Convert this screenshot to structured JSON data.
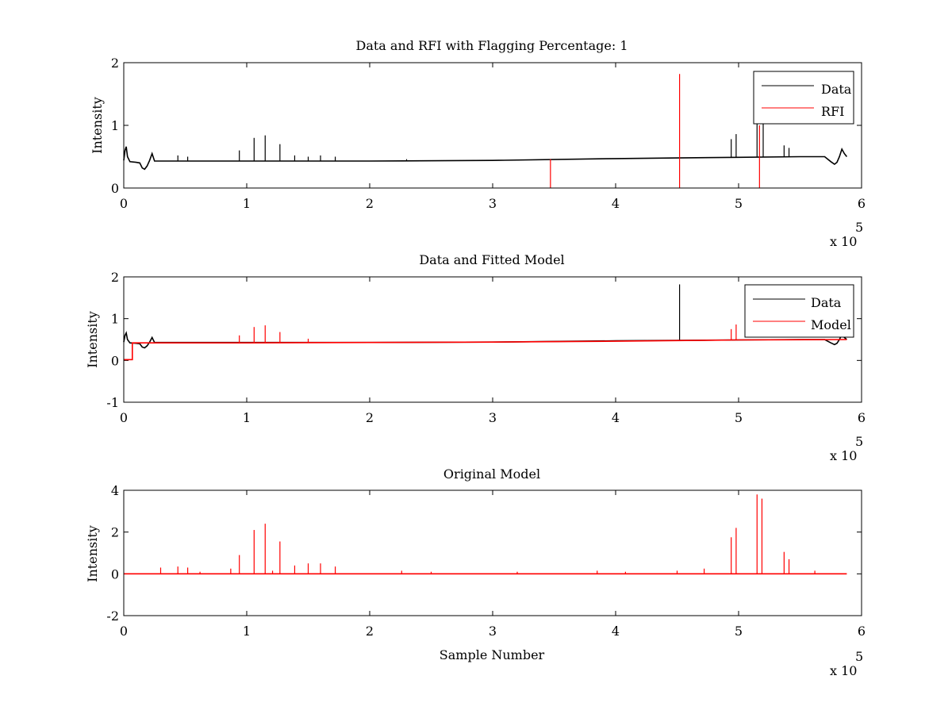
{
  "colors": {
    "data": "#000000",
    "rfi": "#ff0000",
    "model": "#ff0000",
    "background": "#ffffff",
    "axes": "#000000"
  },
  "chart_data": [
    {
      "type": "line",
      "title": "Data and RFI with Flagging Percentage: 1",
      "xlabel": "",
      "ylabel": "Intensity",
      "xlim": [
        0,
        6
      ],
      "ylim": [
        0,
        2
      ],
      "xticks": [
        "0",
        "1",
        "2",
        "3",
        "4",
        "5",
        "6"
      ],
      "yticks": [
        "0",
        "1",
        "2"
      ],
      "x_multiplier": "x 10",
      "x_multiplier_exp": "5",
      "legend": {
        "position": "top-right",
        "entries": [
          "Data",
          "RFI"
        ]
      },
      "grid": false,
      "series": [
        {
          "name": "Data",
          "color": "#000000",
          "baseline": [
            [
              0.0,
              0.44
            ],
            [
              0.01,
              0.6
            ],
            [
              0.02,
              0.66
            ],
            [
              0.03,
              0.5
            ],
            [
              0.05,
              0.42
            ],
            [
              0.1,
              0.41
            ],
            [
              0.13,
              0.4
            ],
            [
              0.15,
              0.32
            ],
            [
              0.17,
              0.3
            ],
            [
              0.19,
              0.35
            ],
            [
              0.21,
              0.44
            ],
            [
              0.23,
              0.55
            ],
            [
              0.25,
              0.43
            ],
            [
              1.0,
              0.43
            ],
            [
              2.0,
              0.43
            ],
            [
              3.0,
              0.44
            ],
            [
              4.0,
              0.47
            ],
            [
              4.5,
              0.48
            ],
            [
              5.0,
              0.49
            ],
            [
              5.5,
              0.5
            ],
            [
              5.7,
              0.5
            ],
            [
              5.75,
              0.42
            ],
            [
              5.78,
              0.38
            ],
            [
              5.8,
              0.41
            ],
            [
              5.82,
              0.5
            ],
            [
              5.84,
              0.62
            ],
            [
              5.86,
              0.55
            ],
            [
              5.88,
              0.5
            ]
          ],
          "spikes": [
            [
              0.44,
              0.52
            ],
            [
              0.52,
              0.5
            ],
            [
              0.94,
              0.6
            ],
            [
              1.06,
              0.8
            ],
            [
              1.15,
              0.84
            ],
            [
              1.27,
              0.7
            ],
            [
              1.39,
              0.52
            ],
            [
              1.5,
              0.5
            ],
            [
              1.6,
              0.52
            ],
            [
              1.72,
              0.5
            ],
            [
              2.3,
              0.46
            ],
            [
              4.94,
              0.78
            ],
            [
              4.98,
              0.86
            ],
            [
              5.15,
              1.05
            ],
            [
              5.2,
              1.04
            ],
            [
              5.37,
              0.68
            ],
            [
              5.41,
              0.64
            ]
          ]
        },
        {
          "name": "RFI",
          "color": "#ff0000",
          "spikes": [
            [
              3.47,
              0.46
            ],
            [
              4.52,
              1.82
            ],
            [
              5.17,
              1.0
            ]
          ]
        }
      ]
    },
    {
      "type": "line",
      "title": "Data and Fitted Model",
      "xlabel": "",
      "ylabel": "Intensity",
      "xlim": [
        0,
        6
      ],
      "ylim": [
        -1,
        2
      ],
      "xticks": [
        "0",
        "1",
        "2",
        "3",
        "4",
        "5",
        "6"
      ],
      "yticks": [
        "-1",
        "0",
        "1",
        "2"
      ],
      "x_multiplier": "x 10",
      "x_multiplier_exp": "5",
      "legend": {
        "position": "top-right",
        "entries": [
          "Data",
          "Model"
        ]
      },
      "grid": false,
      "series": [
        {
          "name": "Data",
          "color": "#000000",
          "baseline": [
            [
              0.0,
              0.44
            ],
            [
              0.01,
              0.6
            ],
            [
              0.02,
              0.66
            ],
            [
              0.03,
              0.5
            ],
            [
              0.05,
              0.42
            ],
            [
              0.1,
              0.41
            ],
            [
              0.13,
              0.4
            ],
            [
              0.15,
              0.32
            ],
            [
              0.17,
              0.3
            ],
            [
              0.19,
              0.35
            ],
            [
              0.21,
              0.44
            ],
            [
              0.23,
              0.55
            ],
            [
              0.25,
              0.43
            ],
            [
              1.0,
              0.43
            ],
            [
              2.0,
              0.43
            ],
            [
              3.0,
              0.44
            ],
            [
              4.0,
              0.47
            ],
            [
              4.5,
              0.48
            ],
            [
              5.0,
              0.49
            ],
            [
              5.5,
              0.5
            ],
            [
              5.7,
              0.5
            ],
            [
              5.75,
              0.42
            ],
            [
              5.78,
              0.38
            ],
            [
              5.8,
              0.41
            ],
            [
              5.82,
              0.5
            ],
            [
              5.84,
              0.62
            ],
            [
              5.86,
              0.55
            ],
            [
              5.88,
              0.5
            ]
          ],
          "spikes": [
            [
              4.52,
              1.82
            ]
          ]
        },
        {
          "name": "Model",
          "color": "#ff0000",
          "baseline": [
            [
              0.0,
              0.02
            ],
            [
              0.07,
              0.02
            ],
            [
              0.07,
              0.42
            ],
            [
              1.0,
              0.42
            ],
            [
              2.0,
              0.43
            ],
            [
              3.0,
              0.44
            ],
            [
              4.0,
              0.46
            ],
            [
              5.0,
              0.49
            ],
            [
              5.88,
              0.5
            ]
          ],
          "spikes": [
            [
              0.94,
              0.6
            ],
            [
              1.06,
              0.8
            ],
            [
              1.15,
              0.84
            ],
            [
              1.27,
              0.68
            ],
            [
              1.5,
              0.52
            ],
            [
              4.94,
              0.75
            ],
            [
              4.98,
              0.86
            ]
          ]
        }
      ]
    },
    {
      "type": "line",
      "title": "Original Model",
      "xlabel": "Sample Number",
      "ylabel": "Intensity",
      "xlim": [
        0,
        6
      ],
      "ylim": [
        -2,
        4
      ],
      "xticks": [
        "0",
        "1",
        "2",
        "3",
        "4",
        "5",
        "6"
      ],
      "yticks": [
        "-2",
        "0",
        "2",
        "4"
      ],
      "x_multiplier": "x 10",
      "x_multiplier_exp": "5",
      "grid": false,
      "series": [
        {
          "name": "",
          "color": "#ff0000",
          "baseline": [
            [
              0.0,
              0.0
            ],
            [
              5.88,
              0.0
            ]
          ],
          "spikes": [
            [
              0.3,
              0.3
            ],
            [
              0.44,
              0.35
            ],
            [
              0.52,
              0.3
            ],
            [
              0.62,
              0.1
            ],
            [
              0.87,
              0.25
            ],
            [
              0.94,
              0.9
            ],
            [
              1.06,
              2.1
            ],
            [
              1.15,
              2.4
            ],
            [
              1.21,
              0.15
            ],
            [
              1.27,
              1.55
            ],
            [
              1.39,
              0.4
            ],
            [
              1.5,
              0.5
            ],
            [
              1.6,
              0.5
            ],
            [
              1.72,
              0.35
            ],
            [
              2.26,
              0.15
            ],
            [
              2.5,
              0.1
            ],
            [
              3.2,
              0.1
            ],
            [
              3.85,
              0.15
            ],
            [
              4.08,
              0.1
            ],
            [
              4.5,
              0.15
            ],
            [
              4.72,
              0.25
            ],
            [
              4.94,
              1.75
            ],
            [
              4.98,
              2.2
            ],
            [
              5.15,
              3.8
            ],
            [
              5.19,
              3.6
            ],
            [
              5.37,
              1.05
            ],
            [
              5.41,
              0.7
            ],
            [
              5.62,
              0.15
            ]
          ]
        }
      ]
    }
  ]
}
